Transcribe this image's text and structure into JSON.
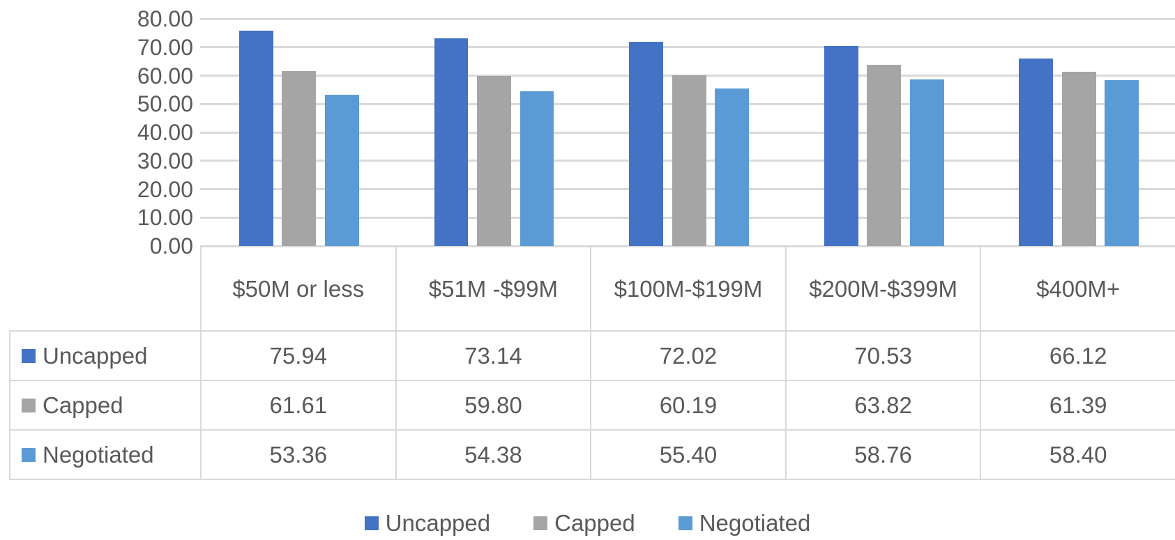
{
  "chart_data": {
    "type": "bar",
    "categories": [
      "$50M or less",
      "$51M -$99M",
      "$100M-$199M",
      "$200M-$399M",
      "$400M+"
    ],
    "series": [
      {
        "name": "Uncapped",
        "color": "#4472c4",
        "values": [
          75.94,
          73.14,
          72.02,
          70.53,
          66.12
        ],
        "value_labels": [
          "75.94",
          "73.14",
          "72.02",
          "70.53",
          "66.12"
        ]
      },
      {
        "name": "Capped",
        "color": "#a5a5a5",
        "values": [
          61.61,
          59.8,
          60.19,
          63.82,
          61.39
        ],
        "value_labels": [
          "61.61",
          "59.80",
          "60.19",
          "63.82",
          "61.39"
        ]
      },
      {
        "name": "Negotiated",
        "color": "#5b9bd5",
        "values": [
          53.36,
          54.38,
          55.4,
          58.76,
          58.4
        ],
        "value_labels": [
          "53.36",
          "54.38",
          "55.40",
          "58.76",
          "58.40"
        ]
      }
    ],
    "ylim": [
      0,
      80
    ],
    "yticks": [
      {
        "value": 0,
        "label": "0.00"
      },
      {
        "value": 10,
        "label": "10.00"
      },
      {
        "value": 20,
        "label": "20.00"
      },
      {
        "value": 30,
        "label": "30.00"
      },
      {
        "value": 40,
        "label": "40.00"
      },
      {
        "value": 50,
        "label": "50.00"
      },
      {
        "value": 60,
        "label": "60.00"
      },
      {
        "value": 70,
        "label": "70.00"
      },
      {
        "value": 80,
        "label": "80.00"
      }
    ],
    "grid": true,
    "legend": "bottom",
    "data_table": true
  }
}
